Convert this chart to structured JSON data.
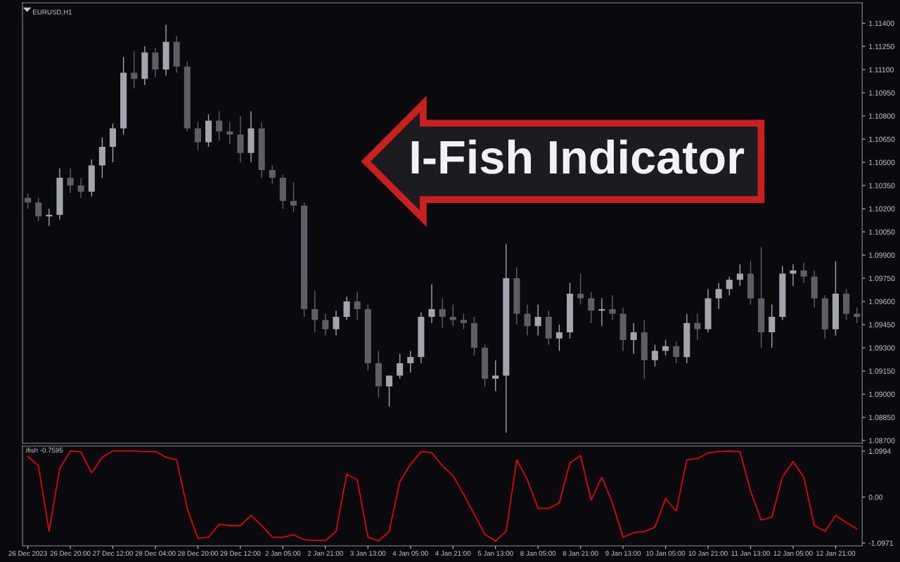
{
  "chart_data": [
    {
      "type": "candlestick",
      "title": "I-Fish Indicator",
      "annotations": [
        "EURUSD,H1"
      ],
      "categories": [
        null,
        null,
        null,
        null,
        null,
        null,
        null,
        null,
        null,
        null,
        null,
        null,
        null,
        null,
        null,
        null,
        null,
        null,
        null,
        null,
        null,
        null,
        null,
        null,
        null,
        null,
        null,
        null,
        null,
        null,
        null,
        null,
        null,
        null,
        null,
        null,
        null,
        null,
        null,
        null,
        null,
        null,
        null,
        null,
        null,
        null,
        null,
        null,
        null,
        null,
        null,
        null,
        null,
        null,
        null,
        null,
        null,
        null,
        null,
        null,
        null,
        null,
        null,
        null,
        null,
        null,
        null,
        null,
        null,
        null,
        null,
        null,
        null,
        null,
        null,
        null,
        null,
        null,
        null
      ],
      "ohlc": [
        [
          1.1027,
          1.103,
          1.102,
          1.1024
        ],
        [
          1.1024,
          1.1027,
          1.1012,
          1.1015
        ],
        [
          1.1015,
          1.102,
          1.1009,
          1.1016
        ],
        [
          1.1016,
          1.1046,
          1.1013,
          1.104
        ],
        [
          1.104,
          1.1046,
          1.103,
          1.1035
        ],
        [
          1.1035,
          1.104,
          1.1027,
          1.1031
        ],
        [
          1.1031,
          1.1052,
          1.1028,
          1.1048
        ],
        [
          1.1048,
          1.1066,
          1.104,
          1.106
        ],
        [
          1.106,
          1.1075,
          1.105,
          1.1072
        ],
        [
          1.1072,
          1.1118,
          1.1068,
          1.1108
        ],
        [
          1.1108,
          1.1122,
          1.1098,
          1.1104
        ],
        [
          1.1104,
          1.1125,
          1.11,
          1.1121
        ],
        [
          1.1121,
          1.1124,
          1.1105,
          1.111
        ],
        [
          1.111,
          1.1139,
          1.1106,
          1.1128
        ],
        [
          1.1128,
          1.1132,
          1.1108,
          1.1112
        ],
        [
          1.1112,
          1.1115,
          1.107,
          1.1072
        ],
        [
          1.1072,
          1.1076,
          1.1058,
          1.1063
        ],
        [
          1.1063,
          1.1081,
          1.106,
          1.1077
        ],
        [
          1.1077,
          1.1083,
          1.1064,
          1.107
        ],
        [
          1.107,
          1.1076,
          1.1062,
          1.1068
        ],
        [
          1.1068,
          1.108,
          1.105,
          1.1056
        ],
        [
          1.1056,
          1.1083,
          1.105,
          1.1072
        ],
        [
          1.1072,
          1.1076,
          1.104,
          1.1045
        ],
        [
          1.1045,
          1.1048,
          1.1036,
          1.104
        ],
        [
          1.104,
          1.1042,
          1.102,
          1.1025
        ],
        [
          1.1025,
          1.1037,
          1.1018,
          1.1022
        ],
        [
          1.1022,
          1.1024,
          1.095,
          1.0955
        ],
        [
          1.0955,
          1.0967,
          1.094,
          1.0948
        ],
        [
          1.0948,
          1.0952,
          1.0938,
          1.0942
        ],
        [
          1.0942,
          1.0954,
          1.0938,
          1.095
        ],
        [
          1.095,
          1.0963,
          1.0948,
          1.096
        ],
        [
          1.096,
          1.0966,
          1.0948,
          1.0955
        ],
        [
          1.0955,
          1.0958,
          1.0915,
          1.092
        ],
        [
          1.092,
          1.0928,
          1.0898,
          1.0905
        ],
        [
          1.0905,
          1.0912,
          1.0892,
          1.0912
        ],
        [
          1.0912,
          1.0926,
          1.091,
          1.092
        ],
        [
          1.092,
          1.0928,
          1.0914,
          1.0924
        ],
        [
          1.0924,
          1.0953,
          1.092,
          1.095
        ],
        [
          1.095,
          1.0971,
          1.0946,
          1.0955
        ],
        [
          1.0955,
          1.0962,
          1.0943,
          1.095
        ],
        [
          1.095,
          1.0958,
          1.0944,
          1.0948
        ],
        [
          1.0948,
          1.0952,
          1.0942,
          1.0946
        ],
        [
          1.0946,
          1.095,
          1.0925,
          1.093
        ],
        [
          1.093,
          1.0932,
          1.0905,
          1.091
        ],
        [
          1.091,
          1.0922,
          1.0902,
          1.0912
        ],
        [
          1.0912,
          1.0997,
          1.0875,
          1.0975
        ],
        [
          1.0975,
          1.0982,
          1.0945,
          1.0952
        ],
        [
          1.0952,
          1.0958,
          1.0938,
          1.0944
        ],
        [
          1.0944,
          1.0958,
          1.0938,
          1.095
        ],
        [
          1.095,
          1.0954,
          1.0932,
          1.0936
        ],
        [
          1.0936,
          1.0945,
          1.0928,
          1.094
        ],
        [
          1.094,
          1.0972,
          1.0936,
          1.0965
        ],
        [
          1.0965,
          1.0978,
          1.0958,
          1.0962
        ],
        [
          1.0962,
          1.0966,
          1.0946,
          1.0954
        ],
        [
          1.0954,
          1.0962,
          1.0944,
          1.0955
        ],
        [
          1.0955,
          1.0964,
          1.0948,
          1.0952
        ],
        [
          1.0952,
          1.0956,
          1.0928,
          1.0935
        ],
        [
          1.0935,
          1.0946,
          1.0926,
          1.094
        ],
        [
          1.094,
          1.0948,
          1.091,
          1.0922
        ],
        [
          1.0922,
          1.0932,
          1.0918,
          1.0928
        ],
        [
          1.0928,
          1.0935,
          1.0925,
          1.0931
        ],
        [
          1.0931,
          1.0934,
          1.092,
          1.0924
        ],
        [
          1.0924,
          1.0952,
          1.092,
          1.0946
        ],
        [
          1.0946,
          1.0952,
          1.0935,
          1.0942
        ],
        [
          1.0942,
          1.0968,
          1.094,
          1.0962
        ],
        [
          1.0962,
          1.0972,
          1.0955,
          1.0968
        ],
        [
          1.0968,
          1.0976,
          1.0964,
          1.0974
        ],
        [
          1.0974,
          1.0984,
          1.097,
          1.0978
        ],
        [
          1.0978,
          1.0986,
          1.0958,
          1.0962
        ],
        [
          1.0962,
          1.0995,
          1.093,
          1.094
        ],
        [
          1.094,
          1.0958,
          1.093,
          1.095
        ],
        [
          1.095,
          1.0983,
          1.0948,
          1.0978
        ],
        [
          1.0978,
          1.0984,
          1.097,
          1.098
        ],
        [
          1.098,
          1.0985,
          1.0972,
          1.0976
        ],
        [
          1.0976,
          1.098,
          1.0956,
          1.0962
        ],
        [
          1.0962,
          1.0964,
          1.0936,
          1.0942
        ],
        [
          1.0942,
          1.0986,
          1.0938,
          1.0965
        ],
        [
          1.0965,
          1.0968,
          1.0948,
          1.0952
        ],
        [
          1.0952,
          1.0956,
          1.0946,
          1.095
        ]
      ],
      "ylim": [
        1.08682,
        1.11532
      ],
      "yticks": [
        {
          "value": 1.087,
          "label": "1.08700"
        },
        {
          "value": 1.0885,
          "label": "1.08850"
        },
        {
          "value": 1.09,
          "label": "1.09000"
        },
        {
          "value": 1.0915,
          "label": "1.09150"
        },
        {
          "value": 1.093,
          "label": "1.09300"
        },
        {
          "value": 1.0945,
          "label": "1.09450"
        },
        {
          "value": 1.096,
          "label": "1.09600"
        },
        {
          "value": 1.0975,
          "label": "1.09750"
        },
        {
          "value": 1.099,
          "label": "1.09900"
        },
        {
          "value": 1.1005,
          "label": "1.10050"
        },
        {
          "value": 1.102,
          "label": "1.10200"
        },
        {
          "value": 1.1035,
          "label": "1.10350"
        },
        {
          "value": 1.105,
          "label": "1.10500"
        },
        {
          "value": 1.1065,
          "label": "1.10650"
        },
        {
          "value": 1.108,
          "label": "1.10800"
        },
        {
          "value": 1.1095,
          "label": "1.10950"
        },
        {
          "value": 1.111,
          "label": "1.11100"
        },
        {
          "value": 1.1125,
          "label": "1.11250"
        },
        {
          "value": 1.114,
          "label": "1.11400"
        }
      ],
      "tick_labels": "y"
    },
    {
      "type": "line",
      "annotations": [
        "ifish -0.7595"
      ],
      "categories": [
        "26 Dec 2023",
        null,
        null,
        null,
        "26 Dec 20:00",
        null,
        null,
        null,
        "27 Dec 12:00",
        null,
        null,
        null,
        "28 Dec 04:00",
        null,
        null,
        null,
        "28 Dec 20:00",
        null,
        null,
        null,
        "29 Dec 12:00",
        null,
        null,
        null,
        "2 Jan 05:00",
        null,
        null,
        null,
        "2 Jan 21:00",
        null,
        null,
        null,
        "3 Jan 13:00",
        null,
        null,
        null,
        "4 Jan 05:00",
        null,
        null,
        null,
        "4 Jan 21:00",
        null,
        null,
        null,
        "5 Jan 13:00",
        null,
        null,
        null,
        "8 Jan 05:00",
        null,
        null,
        null,
        "8 Jan 21:00",
        null,
        null,
        null,
        "9 Jan 13:00",
        null,
        null,
        null,
        "10 Jan 05:00",
        null,
        null,
        null,
        "10 Jan 21:00",
        null,
        null,
        null,
        "11 Jan 13:00",
        null,
        null,
        null,
        "12 Jan 05:00",
        null,
        null,
        null,
        "12 Jan 21:00",
        null,
        null
      ],
      "series": [
        {
          "color": "#ff0000",
          "values": [
            0.97,
            0.75,
            -0.82,
            0.68,
            1.1,
            1.08,
            0.58,
            0.95,
            1.1,
            1.1,
            1.1,
            1.09,
            1.09,
            0.95,
            0.89,
            -0.27,
            -0.99,
            -0.96,
            -0.65,
            -0.68,
            -0.68,
            -0.44,
            -0.68,
            -0.96,
            -0.96,
            -0.9,
            -1.02,
            -1.04,
            -1.04,
            -0.82,
            0.55,
            0.41,
            -0.96,
            -1.05,
            -0.82,
            0.37,
            0.78,
            1.09,
            1.06,
            0.75,
            0.51,
            0.07,
            -0.41,
            -0.89,
            -1.05,
            -0.82,
            0.89,
            0.41,
            -0.27,
            -0.27,
            -0.14,
            0.82,
            0.99,
            -0.07,
            0.48,
            -0.14,
            -0.96,
            -0.85,
            -0.82,
            -0.72,
            -0.03,
            -0.34,
            0.89,
            0.92,
            1.06,
            1.09,
            1.1,
            1.09,
            0.14,
            -0.55,
            -0.48,
            0.48,
            0.85,
            0.48,
            -0.68,
            -0.82,
            -0.44,
            -0.61,
            -0.76
          ]
        }
      ],
      "ylim": [
        -1.165,
        1.219
      ],
      "yticks": [
        1.0994,
        {
          "value": 0,
          "label": "0.00"
        },
        -1.0971
      ]
    }
  ]
}
